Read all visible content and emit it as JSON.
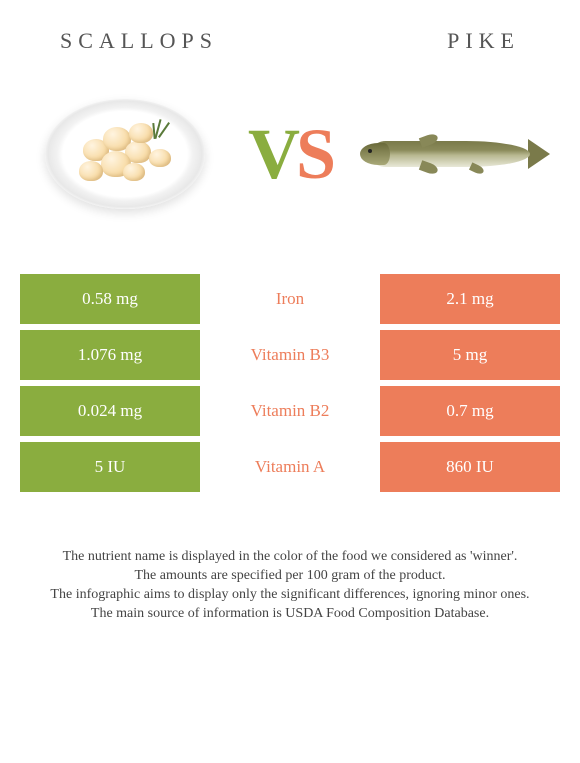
{
  "left_food": {
    "title": "Scallops",
    "color": "#8aad3f"
  },
  "right_food": {
    "title": "Pike",
    "color": "#ed7d5a"
  },
  "vs": {
    "v_color": "#8aad3f",
    "s_color": "#ed7d5a"
  },
  "nutrients": [
    {
      "name": "Iron",
      "left": "0.58 mg",
      "right": "2.1 mg",
      "winner": "right"
    },
    {
      "name": "Vitamin B3",
      "left": "1.076 mg",
      "right": "5 mg",
      "winner": "right"
    },
    {
      "name": "Vitamin B2",
      "left": "0.024 mg",
      "right": "0.7 mg",
      "winner": "right"
    },
    {
      "name": "Vitamin A",
      "left": "5 IU",
      "right": "860 IU",
      "winner": "right"
    }
  ],
  "footer": {
    "l1": "The nutrient name is displayed in the color of the food we considered as 'winner'.",
    "l2": "The amounts are specified per 100 gram of the product.",
    "l3": "The infographic aims to display only the significant differences, ignoring minor ones.",
    "l4": "The main source of information is USDA Food Composition Database."
  },
  "scallops_layout": [
    {
      "l": 38,
      "t": 40,
      "w": 26,
      "h": 22
    },
    {
      "l": 58,
      "t": 28,
      "w": 28,
      "h": 24
    },
    {
      "l": 80,
      "t": 42,
      "w": 26,
      "h": 22
    },
    {
      "l": 56,
      "t": 52,
      "w": 30,
      "h": 26
    },
    {
      "l": 84,
      "t": 24,
      "w": 24,
      "h": 20
    },
    {
      "l": 34,
      "t": 62,
      "w": 24,
      "h": 20
    },
    {
      "l": 78,
      "t": 64,
      "w": 22,
      "h": 18
    },
    {
      "l": 104,
      "t": 50,
      "w": 22,
      "h": 18
    }
  ]
}
